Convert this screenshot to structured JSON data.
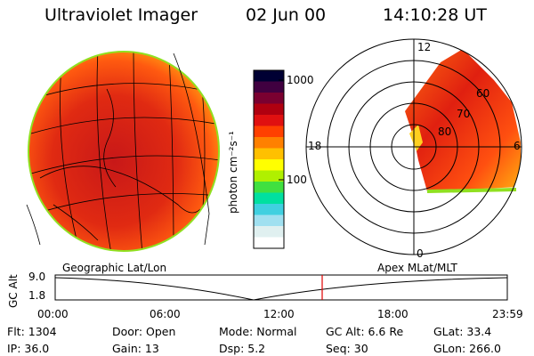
{
  "header": {
    "title": "Ultraviolet Imager",
    "date": "02 Jun 00",
    "time": "14:10:28 UT"
  },
  "colorbar": {
    "unit_label": "photon cm⁻²s⁻¹",
    "tick_labels": [
      "1000",
      "100"
    ],
    "colors": [
      "#000033",
      "#400040",
      "#7a0030",
      "#b00010",
      "#e01010",
      "#ff4000",
      "#ff8000",
      "#ffc000",
      "#ffff00",
      "#b0f000",
      "#40e040",
      "#00e0a0",
      "#40d0e0",
      "#a0e0f0",
      "#e0f0f0",
      "#ffffff"
    ]
  },
  "polar_plot": {
    "hour_labels": {
      "top": "12",
      "left": "18",
      "right": "6",
      "bottom": "0"
    },
    "lat_labels": [
      "60",
      "70",
      "80"
    ]
  },
  "altitude_plot": {
    "axis_label": "GC Alt",
    "y_labels": [
      "9.0",
      "1.8"
    ],
    "left_caption": "Geographic Lat/Lon",
    "right_caption": "Apex MLat/MLT",
    "time_labels": [
      "00:00",
      "06:00",
      "12:00",
      "18:00",
      "23:59"
    ]
  },
  "status": {
    "flt": "Flt: 1304",
    "ip": "IP: 36.0",
    "door": "Door:  Open",
    "gain": "Gain: 13",
    "mode": "Mode: Normal",
    "dsp": "Dsp:      5.2",
    "gc_alt": "GC Alt: 6.6 Re",
    "seq": "Seq: 30",
    "glat": "GLat:   33.4",
    "glon": "GLon: 266.0"
  }
}
